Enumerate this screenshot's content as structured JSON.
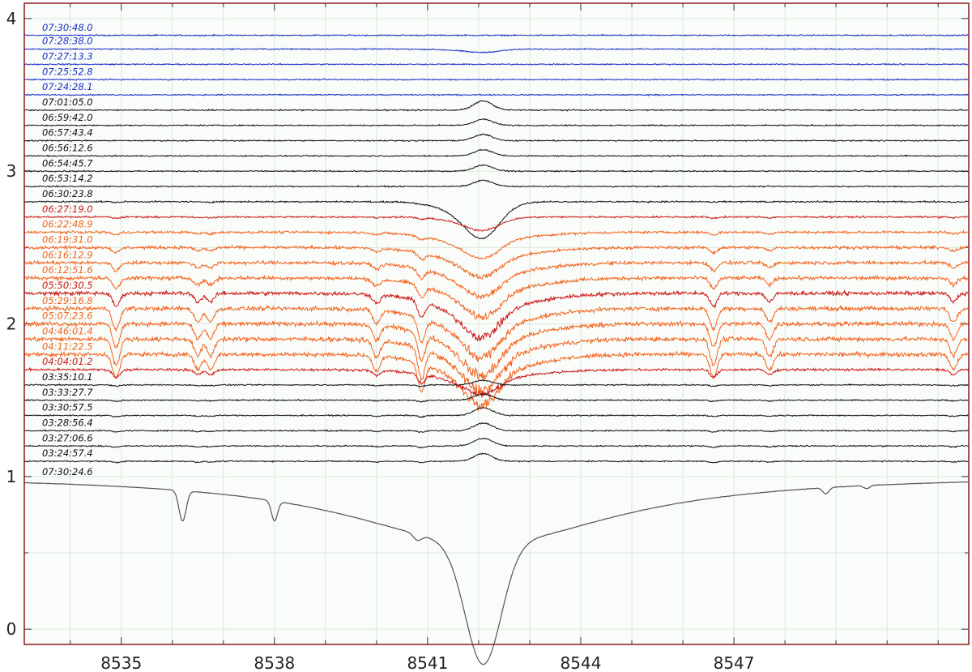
{
  "chart_data": {
    "type": "line",
    "title": "",
    "xlabel": "",
    "ylabel": "",
    "xlim": [
      8533.1,
      8551.6
    ],
    "ylim": [
      -0.1,
      4.1
    ],
    "grid": true,
    "x_ticks": [
      8535,
      8538,
      8541,
      8544,
      8547
    ],
    "y_ticks": [
      0,
      1,
      2,
      3,
      4
    ],
    "colors": {
      "frame": "#8b1a1a",
      "plot_bg": "#f9fcf8",
      "grid": "#dde6df",
      "blue": "#1a2fc9",
      "black": "#111111",
      "red": "#cc1a1a",
      "orange": "#f26522",
      "reference": "#555555"
    },
    "reference_spectrum": {
      "label": "07:30:24.6",
      "label_y": 1.03,
      "continuum": 0.97,
      "lines": [
        {
          "x": 8542.09,
          "depth": 0.79,
          "width": 0.35
        },
        {
          "x": 8536.2,
          "depth": 0.2,
          "width": 0.07
        },
        {
          "x": 8538.0,
          "depth": 0.13,
          "width": 0.06
        },
        {
          "x": 8540.8,
          "depth": 0.04,
          "width": 0.08
        },
        {
          "x": 8548.8,
          "depth": 0.04,
          "width": 0.06
        },
        {
          "x": 8549.6,
          "depth": 0.02,
          "width": 0.06
        }
      ],
      "wing_depth": 0.45,
      "wing_width": 3.2
    },
    "series": [
      {
        "label": "07:30:48.0",
        "offset": 3.89,
        "color": "blue",
        "center": 0,
        "wings": 0,
        "photo": 0,
        "noise": 0.005
      },
      {
        "label": "07:28:38.0",
        "offset": 3.8,
        "color": "blue",
        "center": -0.02,
        "wings": 0,
        "photo": 0,
        "noise": 0.005
      },
      {
        "label": "07:27:13.3",
        "offset": 3.7,
        "color": "blue",
        "center": 0,
        "wings": 0,
        "photo": 0,
        "noise": 0.005
      },
      {
        "label": "07:25:52.8",
        "offset": 3.6,
        "color": "blue",
        "center": 0,
        "wings": 0,
        "photo": 0,
        "noise": 0.005
      },
      {
        "label": "07:24:28.1",
        "offset": 3.5,
        "color": "blue",
        "center": 0,
        "wings": 0,
        "photo": 0,
        "noise": 0.005
      },
      {
        "label": "07:01:05.0",
        "offset": 3.4,
        "color": "black",
        "center": 0.06,
        "wings": 0,
        "photo": 0,
        "noise": 0.005
      },
      {
        "label": "06:59:42.0",
        "offset": 3.3,
        "color": "black",
        "center": 0.04,
        "wings": 0,
        "photo": 0,
        "noise": 0.005
      },
      {
        "label": "06:57:43.4",
        "offset": 3.2,
        "color": "black",
        "center": 0.04,
        "wings": 0,
        "photo": 0,
        "noise": 0.005
      },
      {
        "label": "06:56:12.6",
        "offset": 3.1,
        "color": "black",
        "center": 0.04,
        "wings": 0,
        "photo": 0,
        "noise": 0.005
      },
      {
        "label": "06:54:45.7",
        "offset": 3.0,
        "color": "black",
        "center": 0.04,
        "wings": 0,
        "photo": 0,
        "noise": 0.005
      },
      {
        "label": "06:53:14.2",
        "offset": 2.9,
        "color": "black",
        "center": 0.04,
        "wings": 0,
        "photo": 0,
        "noise": 0.005
      },
      {
        "label": "06:30:23.8",
        "offset": 2.8,
        "color": "black",
        "center": -0.22,
        "wings": 0,
        "photo": 0.005,
        "noise": 0.006
      },
      {
        "label": "06:27:19.0",
        "offset": 2.7,
        "color": "red",
        "center": -0.08,
        "wings": 0,
        "photo": 0.01,
        "noise": 0.007
      },
      {
        "label": "06:22:48.9",
        "offset": 2.6,
        "color": "orange",
        "center": -0.12,
        "wings": 0.04,
        "photo": 0.02,
        "noise": 0.01
      },
      {
        "label": "06:19:31.0",
        "offset": 2.5,
        "color": "orange",
        "center": -0.12,
        "wings": 0.06,
        "photo": 0.04,
        "noise": 0.012
      },
      {
        "label": "06:16:12.9",
        "offset": 2.4,
        "color": "orange",
        "center": -0.14,
        "wings": 0.07,
        "photo": 0.06,
        "noise": 0.014
      },
      {
        "label": "06:12:51.6",
        "offset": 2.3,
        "color": "orange",
        "center": -0.16,
        "wings": 0.08,
        "photo": 0.08,
        "noise": 0.015
      },
      {
        "label": "05:50:30.5",
        "offset": 2.2,
        "color": "red",
        "center": -0.18,
        "wings": 0.09,
        "photo": 0.1,
        "noise": 0.016
      },
      {
        "label": "05:29:16.8",
        "offset": 2.1,
        "color": "orange",
        "center": -0.2,
        "wings": 0.1,
        "photo": 0.16,
        "noise": 0.017
      },
      {
        "label": "05:07:23.6",
        "offset": 2.0,
        "color": "orange",
        "center": -0.22,
        "wings": 0.1,
        "photo": 0.18,
        "noise": 0.018
      },
      {
        "label": "04:46:01.4",
        "offset": 1.9,
        "color": "orange",
        "center": -0.22,
        "wings": 0.1,
        "photo": 0.2,
        "noise": 0.018
      },
      {
        "label": "04:11:22.5",
        "offset": 1.8,
        "color": "orange",
        "center": -0.2,
        "wings": 0.1,
        "photo": 0.18,
        "noise": 0.017
      },
      {
        "label": "04:04:01.2",
        "offset": 1.7,
        "color": "red",
        "center": -0.1,
        "wings": 0.05,
        "photo": 0.06,
        "noise": 0.01
      },
      {
        "label": "03:35:10.1",
        "offset": 1.6,
        "color": "black",
        "center": 0.03,
        "wings": 0,
        "photo": 0.01,
        "noise": 0.005
      },
      {
        "label": "03:33:27.7",
        "offset": 1.5,
        "color": "black",
        "center": 0.04,
        "wings": 0,
        "photo": 0.01,
        "noise": 0.005
      },
      {
        "label": "03:30:57.5",
        "offset": 1.4,
        "color": "black",
        "center": 0.05,
        "wings": 0,
        "photo": 0.01,
        "noise": 0.005
      },
      {
        "label": "03:28:56.4",
        "offset": 1.3,
        "color": "black",
        "center": 0.05,
        "wings": 0,
        "photo": 0.01,
        "noise": 0.005
      },
      {
        "label": "03:27:06.6",
        "offset": 1.2,
        "color": "black",
        "center": 0.05,
        "wings": 0,
        "photo": 0.01,
        "noise": 0.005
      },
      {
        "label": "03:24:57.4",
        "offset": 1.1,
        "color": "black",
        "center": 0.05,
        "wings": 0,
        "photo": 0.01,
        "noise": 0.005
      }
    ]
  }
}
